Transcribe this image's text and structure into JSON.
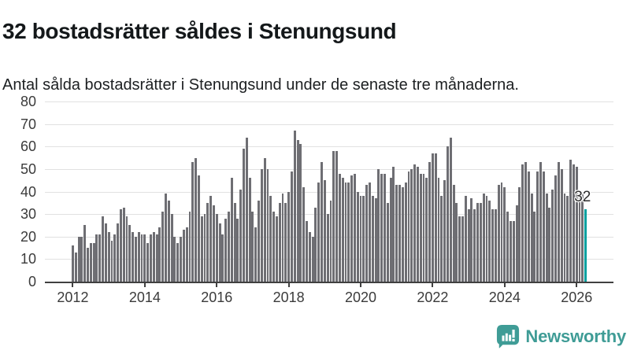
{
  "header": {
    "title": "32 bostadsrätter såldes i Stenungsund",
    "subtitle": "Antal sålda bostadsrätter i Stenungsund under de senaste tre månaderna."
  },
  "chart_data": {
    "type": "bar",
    "title": "32 bostadsrätter såldes i Stenungsund",
    "xlabel": "",
    "ylabel": "",
    "x_unit": "month",
    "x_tick_labels": [
      "2012",
      "2014",
      "2016",
      "2018",
      "2020",
      "2022",
      "2024",
      "2026"
    ],
    "tick_every_bars": 24,
    "y_ticks": [
      0,
      10,
      20,
      30,
      40,
      50,
      60,
      70,
      80
    ],
    "ylim": [
      0,
      80
    ],
    "grid": true,
    "legend": false,
    "bar_color": "#6e6e73",
    "highlight_color": "#00a09f",
    "axis_color": "#404040",
    "grid_color": "#e1e1e1",
    "highlight_index": 171,
    "highlight_label": "32",
    "values": [
      16,
      13,
      20,
      20,
      25,
      15,
      17,
      17,
      21,
      21,
      29,
      26,
      22,
      18,
      21,
      26,
      32,
      33,
      29,
      25,
      22,
      20,
      22,
      21,
      21,
      17,
      21,
      22,
      21,
      24,
      31,
      39,
      36,
      30,
      20,
      17,
      20,
      23,
      24,
      31,
      53,
      55,
      47,
      29,
      30,
      35,
      38,
      34,
      30,
      26,
      21,
      28,
      31,
      46,
      35,
      28,
      41,
      59,
      64,
      46,
      31,
      24,
      36,
      50,
      55,
      50,
      38,
      31,
      29,
      35,
      39,
      35,
      40,
      49,
      67,
      63,
      61,
      42,
      27,
      22,
      20,
      33,
      44,
      53,
      45,
      30,
      36,
      58,
      58,
      48,
      46,
      44,
      44,
      47,
      48,
      40,
      38,
      38,
      43,
      44,
      38,
      37,
      50,
      48,
      48,
      35,
      46,
      51,
      43,
      43,
      42,
      44,
      49,
      50,
      52,
      51,
      48,
      48,
      46,
      53,
      57,
      57,
      46,
      38,
      45,
      60,
      64,
      43,
      35,
      29,
      29,
      38,
      32,
      37,
      32,
      35,
      35,
      39,
      38,
      36,
      32,
      32,
      43,
      44,
      42,
      31,
      27,
      27,
      34,
      42,
      52,
      53,
      49,
      39,
      31,
      49,
      53,
      49,
      39,
      33,
      41,
      47,
      53,
      50,
      39,
      38,
      54,
      52,
      51,
      40,
      39,
      32
    ]
  },
  "footer": {
    "brand": "Newsworthy",
    "brand_color": "#3f9c96",
    "logo_icon": "newsworthy-speech-bubble-bar-chart"
  }
}
